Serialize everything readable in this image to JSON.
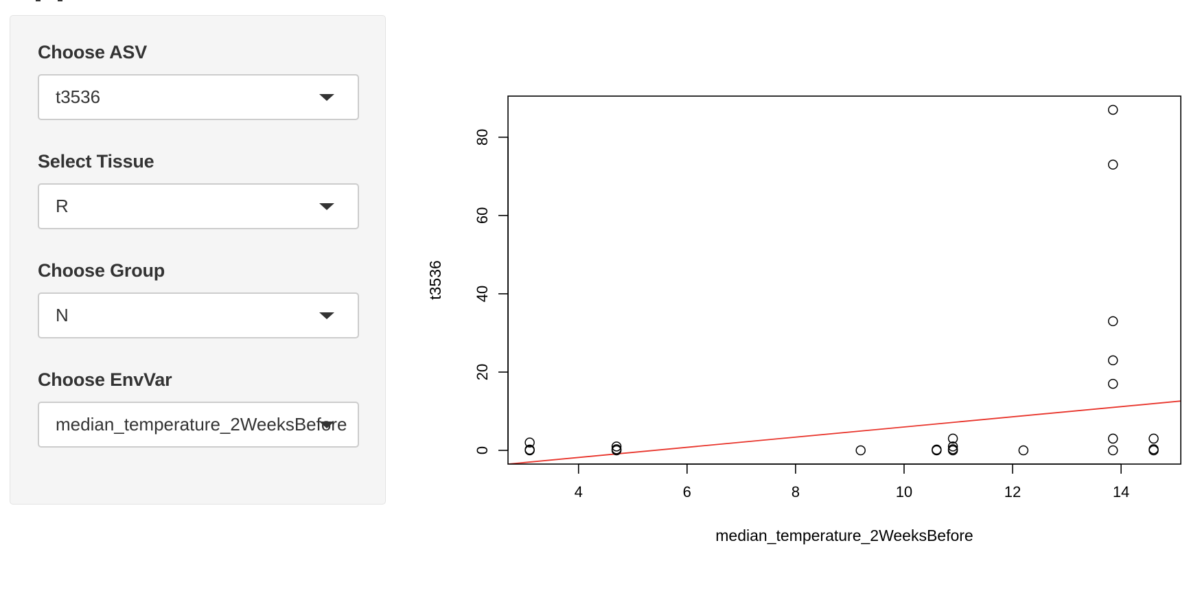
{
  "sidebar": {
    "fields": [
      {
        "label": "Choose ASV",
        "value": "t3536"
      },
      {
        "label": "Select Tissue",
        "value": "R"
      },
      {
        "label": "Choose Group",
        "value": "N"
      },
      {
        "label": "Choose EnvVar",
        "value": "median_temperature_2WeeksBefore"
      }
    ]
  },
  "chart_data": {
    "type": "scatter",
    "title": "",
    "xlabel": "median_temperature_2WeeksBefore",
    "ylabel": "t3536",
    "xlim": [
      2.7,
      15.1
    ],
    "ylim": [
      -3.5,
      90.5
    ],
    "x_ticks": [
      4,
      6,
      8,
      10,
      12,
      14
    ],
    "y_ticks": [
      0,
      20,
      40,
      60,
      80
    ],
    "grid": false,
    "legend": "none",
    "point_color": "#000000",
    "series": [
      {
        "points": [
          [
            3.1,
            2
          ],
          [
            3.1,
            0
          ],
          [
            3.1,
            0.2
          ],
          [
            4.7,
            1
          ],
          [
            4.7,
            0
          ],
          [
            4.7,
            0.3
          ],
          [
            9.2,
            0
          ],
          [
            10.6,
            0
          ],
          [
            10.6,
            0.2
          ],
          [
            10.9,
            3
          ],
          [
            10.9,
            1
          ],
          [
            10.9,
            0
          ],
          [
            10.9,
            0.3
          ],
          [
            12.2,
            0
          ],
          [
            13.85,
            87
          ],
          [
            13.85,
            73
          ],
          [
            13.85,
            33
          ],
          [
            13.85,
            23
          ],
          [
            13.85,
            17
          ],
          [
            13.85,
            3
          ],
          [
            13.85,
            0
          ],
          [
            14.6,
            3
          ],
          [
            14.6,
            0
          ],
          [
            14.6,
            0.3
          ]
        ]
      }
    ],
    "fit_line": {
      "color": "#e8332a",
      "x": [
        2.7,
        15.1
      ],
      "y": [
        -3.5,
        12.6
      ]
    }
  }
}
